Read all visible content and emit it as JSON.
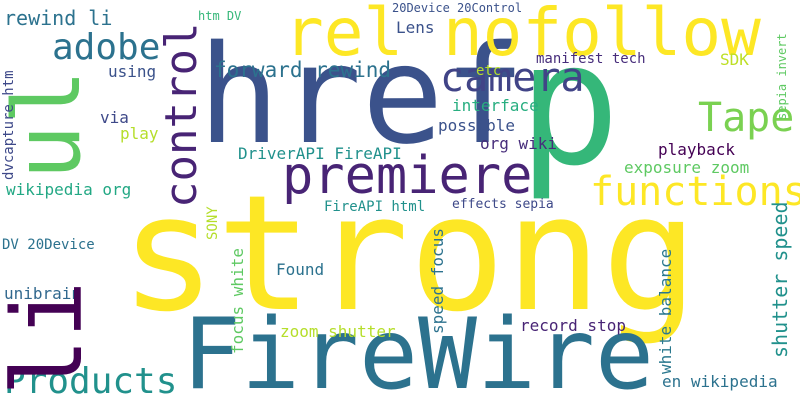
{
  "word_cloud": {
    "background_color": "#ffffff",
    "palette": "viridis",
    "words": [
      {
        "text": "strong",
        "color": "#fde725"
      },
      {
        "text": "href",
        "color": "#3b528b"
      },
      {
        "text": "FireWire",
        "color": "#2c728e"
      },
      {
        "text": "p",
        "color": "#35b779"
      },
      {
        "text": "li",
        "color": "#440154"
      },
      {
        "text": "ul",
        "color": "#5ec962"
      },
      {
        "text": "rel nofollow",
        "color": "#fde725"
      },
      {
        "text": "premiere",
        "color": "#482475"
      },
      {
        "text": "camera",
        "color": "#414487"
      },
      {
        "text": "control",
        "color": "#482475"
      },
      {
        "text": "adobe",
        "color": "#2c728e"
      },
      {
        "text": "Tape",
        "color": "#7ad151"
      },
      {
        "text": "functions",
        "color": "#fde725"
      },
      {
        "text": "Products",
        "color": "#21918c"
      },
      {
        "text": "forward rewind",
        "color": "#2c728e"
      },
      {
        "text": "rewind li",
        "color": "#2c728e"
      },
      {
        "text": "DriverAPI FireAPI",
        "color": "#21918c"
      },
      {
        "text": "playback",
        "color": "#440154"
      },
      {
        "text": "exposure zoom",
        "color": "#5ec962"
      },
      {
        "text": "org wiki",
        "color": "#472d7b"
      },
      {
        "text": "possible",
        "color": "#3b528b"
      },
      {
        "text": "interface",
        "color": "#28ae80"
      },
      {
        "text": "wikipedia org",
        "color": "#22a884"
      },
      {
        "text": "FireAPI html",
        "color": "#21918c"
      },
      {
        "text": "effects sepia",
        "color": "#3e4989"
      },
      {
        "text": "Lens",
        "color": "#3b528b"
      },
      {
        "text": "etc",
        "color": "#b5de2b"
      },
      {
        "text": "SDK",
        "color": "#bddf26"
      },
      {
        "text": "manifest tech",
        "color": "#472d7b"
      },
      {
        "text": "using",
        "color": "#3b528b"
      },
      {
        "text": "via",
        "color": "#3e4989"
      },
      {
        "text": "play",
        "color": "#b5de2b"
      },
      {
        "text": "DV 20Device",
        "color": "#2c728e"
      },
      {
        "text": "Found",
        "color": "#2c728e"
      },
      {
        "text": "unibrain",
        "color": "#31688e"
      },
      {
        "text": "zoom shutter",
        "color": "#b5de2b"
      },
      {
        "text": "record stop",
        "color": "#482475"
      },
      {
        "text": "en wikipedia",
        "color": "#2c728e"
      },
      {
        "text": "20Device 20Control",
        "color": "#3b528b"
      },
      {
        "text": "htm DV",
        "color": "#35b779"
      },
      {
        "text": "dvcapture htm",
        "color": "#3e4989"
      },
      {
        "text": "SONY",
        "color": "#b5de2b"
      },
      {
        "text": "focus white",
        "color": "#5ec962"
      },
      {
        "text": "speed focus",
        "color": "#2c728e"
      },
      {
        "text": "white balance",
        "color": "#2a788e"
      },
      {
        "text": "shutter speed",
        "color": "#21918c"
      },
      {
        "text": "sepia invert",
        "color": "#5ec962"
      }
    ]
  }
}
